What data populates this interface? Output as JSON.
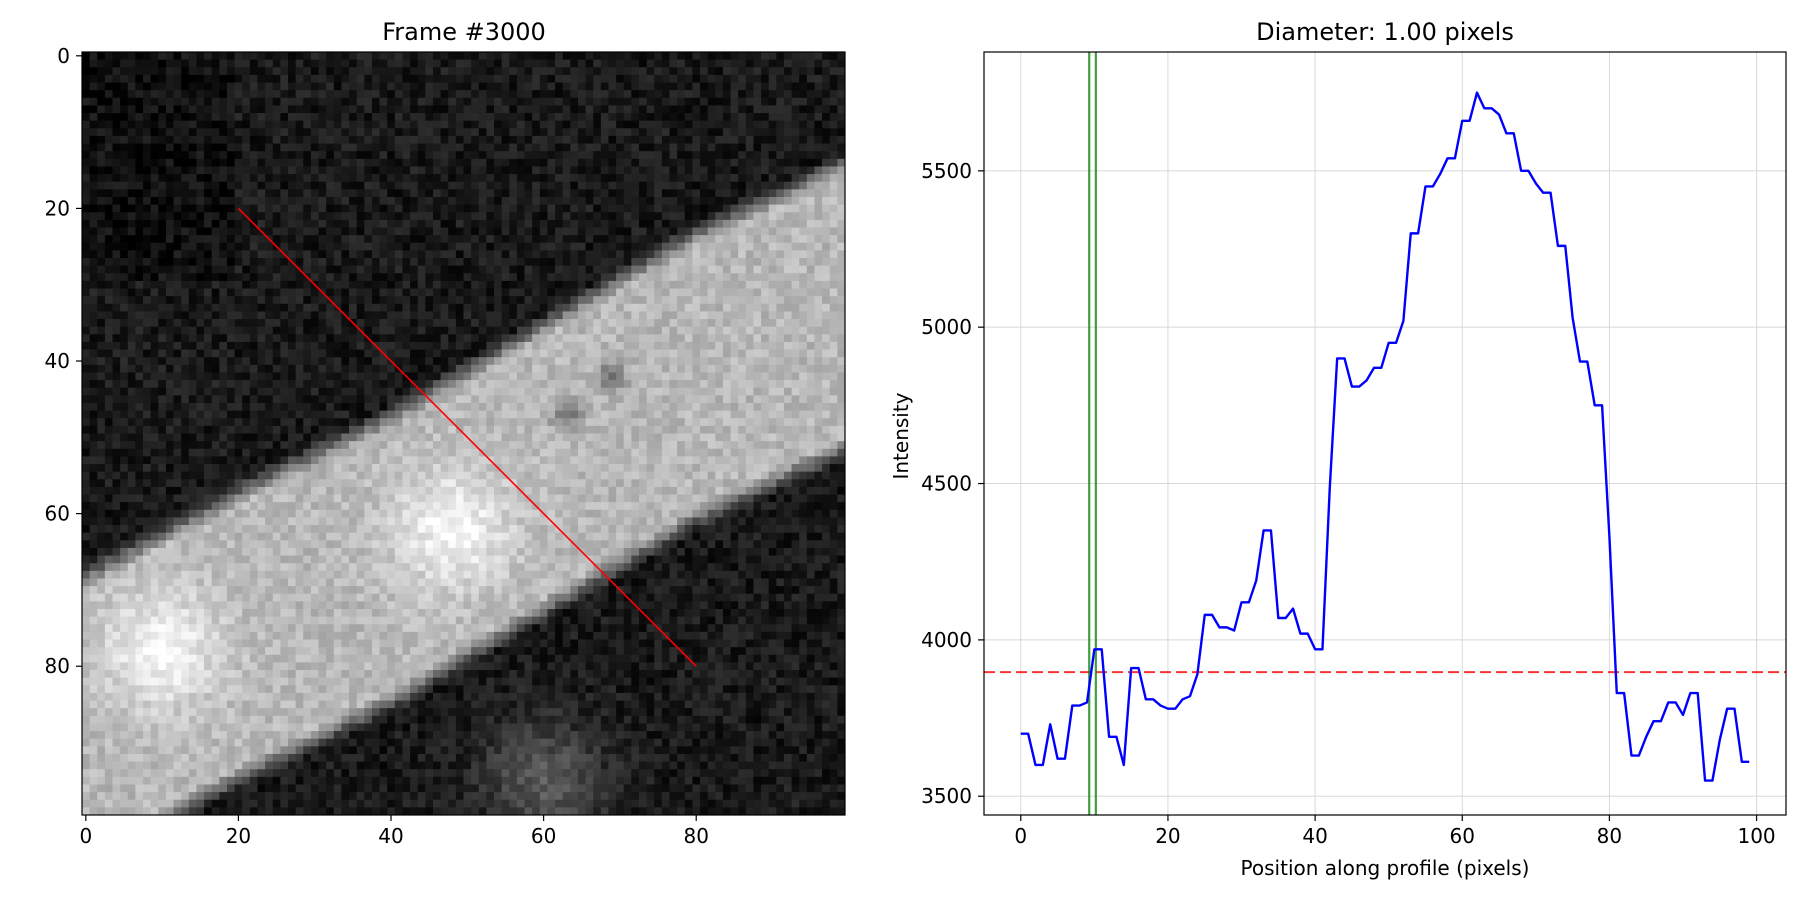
{
  "chart_data": [
    {
      "type": "image",
      "title": "Frame #3000",
      "xlabel": "",
      "ylabel": "",
      "xlim": [
        -0.5,
        99.5
      ],
      "ylim": [
        99.5,
        -0.5
      ],
      "xticks": [
        0,
        20,
        40,
        60,
        80
      ],
      "yticks": [
        0,
        20,
        40,
        60,
        80
      ],
      "colormap": "gray",
      "profile_line": {
        "color": "#ff0000",
        "start": [
          20,
          20
        ],
        "end": [
          80,
          80
        ]
      },
      "vessel": {
        "centerline": [
          [
            0,
            87
          ],
          [
            20,
            76
          ],
          [
            40,
            66
          ],
          [
            60,
            54
          ],
          [
            80,
            42
          ],
          [
            99,
            33
          ]
        ],
        "half_width": 17,
        "bright_blobs": [
          [
            48,
            62
          ],
          [
            10,
            78
          ],
          [
            60,
            95
          ]
        ],
        "dark_spots": [
          [
            69,
            42
          ],
          [
            63,
            47
          ]
        ]
      }
    },
    {
      "type": "line",
      "title": "Diameter: 1.00 pixels",
      "xlabel": "Position along profile (pixels)",
      "ylabel": "Intensity",
      "xlim": [
        -5,
        104
      ],
      "ylim": [
        3440,
        5880
      ],
      "xticks": [
        0,
        20,
        40,
        60,
        80,
        100
      ],
      "yticks": [
        3500,
        4000,
        4500,
        5000,
        5500
      ],
      "grid": true,
      "series": [
        {
          "color": "#0000ff",
          "x": [
            0,
            1,
            2,
            3,
            4,
            5,
            6,
            7,
            8,
            9,
            10,
            11,
            12,
            13,
            14,
            15,
            16,
            17,
            18,
            19,
            20,
            21,
            22,
            23,
            24,
            25,
            26,
            27,
            28,
            29,
            30,
            31,
            32,
            33,
            34,
            35,
            36,
            37,
            38,
            39,
            40,
            41,
            42,
            43,
            44,
            45,
            46,
            47,
            48,
            49,
            50,
            51,
            52,
            53,
            54,
            55,
            56,
            57,
            58,
            59,
            60,
            61,
            62,
            63,
            64,
            65,
            66,
            67,
            68,
            69,
            70,
            71,
            72,
            73,
            74,
            75,
            76,
            77,
            78,
            79,
            80,
            81,
            82,
            83,
            84,
            85,
            86,
            87,
            88,
            89,
            90,
            91,
            92,
            93,
            94,
            95,
            96,
            97,
            98,
            99
          ],
          "values": [
            3700,
            3700,
            3600,
            3600,
            3730,
            3620,
            3620,
            3790,
            3790,
            3800,
            3970,
            3970,
            3690,
            3690,
            3600,
            3910,
            3910,
            3810,
            3810,
            3790,
            3780,
            3780,
            3810,
            3820,
            3890,
            4080,
            4080,
            4040,
            4040,
            4030,
            4120,
            4120,
            4190,
            4350,
            4350,
            4070,
            4070,
            4100,
            4020,
            4020,
            3970,
            3970,
            4490,
            4900,
            4900,
            4810,
            4810,
            4830,
            4870,
            4870,
            4950,
            4950,
            5020,
            5300,
            5300,
            5450,
            5450,
            5490,
            5540,
            5540,
            5660,
            5660,
            5750,
            5700,
            5700,
            5680,
            5620,
            5620,
            5500,
            5500,
            5460,
            5430,
            5430,
            5260,
            5260,
            5030,
            4890,
            4890,
            4750,
            4750,
            4330,
            3830,
            3830,
            3630,
            3630,
            3690,
            3740,
            3740,
            3800,
            3800,
            3760,
            3830,
            3830,
            3550,
            3550,
            3680,
            3780,
            3780,
            3610,
            3610
          ]
        }
      ],
      "hlines": [
        {
          "y": 3897,
          "color": "#ff0000",
          "style": "dashed"
        }
      ],
      "vlines": [
        {
          "x": 9.3,
          "color": "#008000"
        },
        {
          "x": 10.2,
          "color": "#008000"
        }
      ]
    }
  ]
}
